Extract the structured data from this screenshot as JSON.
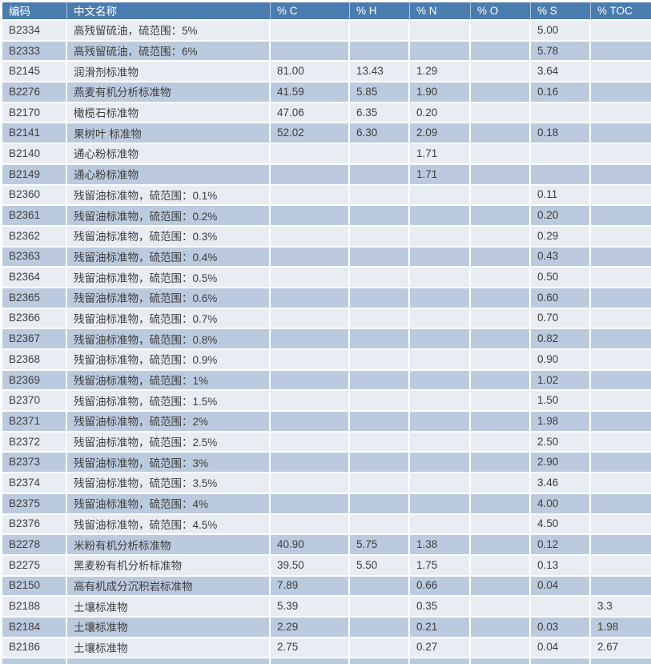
{
  "colors": {
    "header_bg": "#4B7CB0",
    "header_text": "#FFFFFF",
    "band_light": "#E8EDF4",
    "band_dark": "#BCCADF",
    "grid": "#FFFFFF",
    "body_text": "#3E3E3E"
  },
  "table": {
    "headers": [
      "编码",
      "中文名称",
      "% C",
      "% H",
      "% N",
      "% O",
      "% S",
      "% TOC"
    ],
    "rows": [
      [
        "B2334",
        "高残留硫油，硫范围：5%",
        "",
        "",
        "",
        "",
        "5.00",
        ""
      ],
      [
        "B2333",
        "高残留硫油，硫范围：6%",
        "",
        "",
        "",
        "",
        "5.78",
        ""
      ],
      [
        "B2145",
        "润滑剂标准物",
        "81.00",
        "13.43",
        "1.29",
        "",
        "3.64",
        ""
      ],
      [
        "B2276",
        "燕麦有机分析标准物",
        "41.59",
        "5.85",
        "1.90",
        "",
        "0.16",
        ""
      ],
      [
        "B2170",
        "橄榄石标准物",
        "47.06",
        "6.35",
        "0.20",
        "",
        "",
        ""
      ],
      [
        "B2141",
        "果树叶 标准物",
        "52.02",
        "6.30",
        "2.09",
        "",
        "0.18",
        ""
      ],
      [
        "B2140",
        "通心粉标准物",
        "",
        "",
        "1.71",
        "",
        "",
        ""
      ],
      [
        "B2149",
        "通心粉标准物",
        "",
        "",
        "1.71",
        "",
        "",
        ""
      ],
      [
        "B2360",
        "残留油标准物，硫范围：0.1%",
        "",
        "",
        "",
        "",
        "0.11",
        ""
      ],
      [
        "B2361",
        "残留油标准物，硫范围：0.2%",
        "",
        "",
        "",
        "",
        "0.20",
        ""
      ],
      [
        "B2362",
        "残留油标准物，硫范围：0.3%",
        "",
        "",
        "",
        "",
        "0.29",
        ""
      ],
      [
        "B2363",
        "残留油标准物，硫范围：0.4%",
        "",
        "",
        "",
        "",
        "0.43",
        ""
      ],
      [
        "B2364",
        "残留油标准物，硫范围：0.5%",
        "",
        "",
        "",
        "",
        "0.50",
        ""
      ],
      [
        "B2365",
        "残留油标准物，硫范围：0.6%",
        "",
        "",
        "",
        "",
        "0.60",
        ""
      ],
      [
        "B2366",
        "残留油标准物，硫范围：0.7%",
        "",
        "",
        "",
        "",
        "0.70",
        ""
      ],
      [
        "B2367",
        "残留油标准物，硫范围：0.8%",
        "",
        "",
        "",
        "",
        "0.82",
        ""
      ],
      [
        "B2368",
        "残留油标准物，硫范围：0.9%",
        "",
        "",
        "",
        "",
        "0.90",
        ""
      ],
      [
        "B2369",
        "残留油标准物，硫范围：1%",
        "",
        "",
        "",
        "",
        "1.02",
        ""
      ],
      [
        "B2370",
        "残留油标准物，硫范围：1.5%",
        "",
        "",
        "",
        "",
        "1.50",
        ""
      ],
      [
        "B2371",
        "残留油标准物，硫范围：2%",
        "",
        "",
        "",
        "",
        "1.98",
        ""
      ],
      [
        "B2372",
        "残留油标准物，硫范围：2.5%",
        "",
        "",
        "",
        "",
        "2.50",
        ""
      ],
      [
        "B2373",
        "残留油标准物，硫范围：3%",
        "",
        "",
        "",
        "",
        "2.90",
        ""
      ],
      [
        "B2374",
        "残留油标准物，硫范围：3.5%",
        "",
        "",
        "",
        "",
        "3.46",
        ""
      ],
      [
        "B2375",
        "残留油标准物，硫范围：4%",
        "",
        "",
        "",
        "",
        "4.00",
        ""
      ],
      [
        "B2376",
        "残留油标准物，硫范围：4.5%",
        "",
        "",
        "",
        "",
        "4.50",
        ""
      ],
      [
        "B2278",
        "米粉有机分析标准物",
        "40.90",
        "5.75",
        "1.38",
        "",
        "0.12",
        ""
      ],
      [
        "B2275",
        "黑麦粉有机分析标准物",
        "39.50",
        "5.50",
        "1.75",
        "",
        "0.13",
        ""
      ],
      [
        "B2150",
        "高有机成分沉积岩标准物",
        "7.89",
        "",
        "0.66",
        "",
        "0.04",
        ""
      ],
      [
        "B2188",
        "土壤标准物",
        "5.39",
        "",
        "0.35",
        "",
        "",
        "3.3"
      ],
      [
        "B2184",
        "土壤标准物",
        "2.29",
        "",
        "0.21",
        "",
        "0.03",
        "1.98"
      ],
      [
        "B2186",
        "土壤标准物",
        "2.75",
        "",
        "0.27",
        "",
        "0.04",
        "2.67"
      ]
    ]
  }
}
